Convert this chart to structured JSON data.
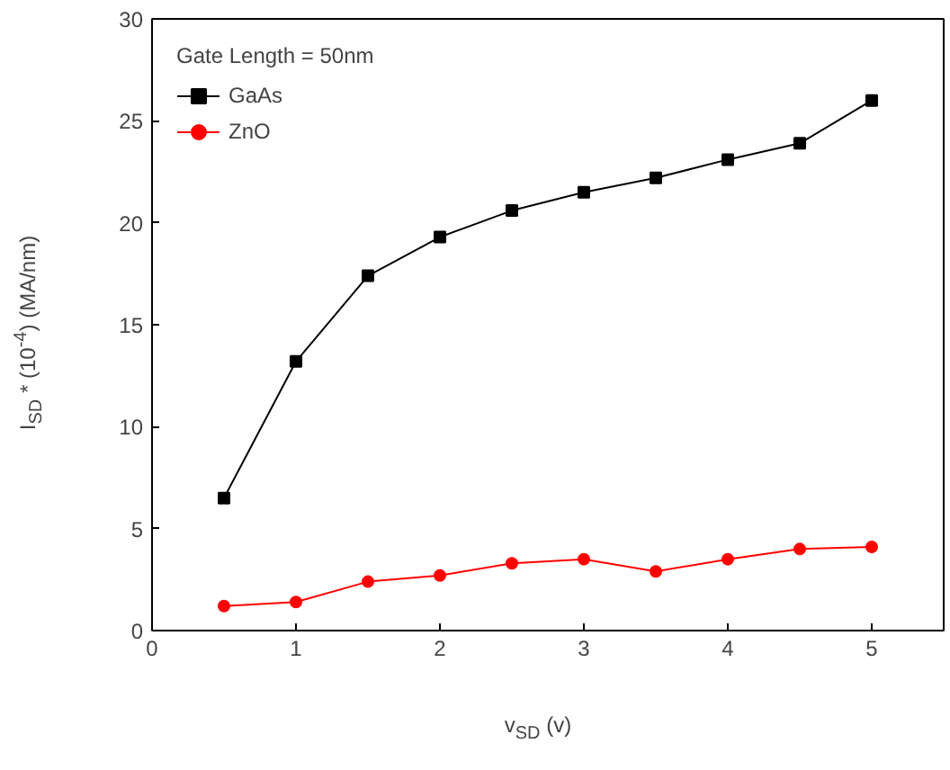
{
  "chart_data": {
    "type": "line",
    "xlabel": "v$_{SD}$ (v)",
    "ylabel": "I$_{SD}$ * (10$^{-4}$)  (MA/nm)",
    "legend_title": "Gate Length = 50nm",
    "legend": "top left",
    "grid": false,
    "x": [
      0.5,
      1,
      1.5,
      2,
      2.5,
      3,
      3.5,
      4,
      4.5,
      5
    ],
    "xlim": [
      0,
      5.5
    ],
    "xticks": [
      0,
      1,
      2,
      3,
      4,
      5
    ],
    "ylim": [
      0,
      30
    ],
    "yticks": [
      0,
      5,
      10,
      15,
      20,
      25,
      30
    ],
    "series": [
      {
        "name": "GaAs",
        "color": "#000000",
        "marker": "square",
        "values": [
          6.5,
          13.2,
          17.4,
          19.3,
          20.6,
          21.5,
          22.2,
          23.1,
          23.9,
          26.0
        ]
      },
      {
        "name": "ZnO",
        "color": "#ff0000",
        "marker": "circle",
        "values": [
          1.2,
          1.4,
          2.4,
          2.7,
          3.3,
          3.5,
          2.9,
          3.5,
          4.0,
          4.1
        ]
      }
    ]
  }
}
